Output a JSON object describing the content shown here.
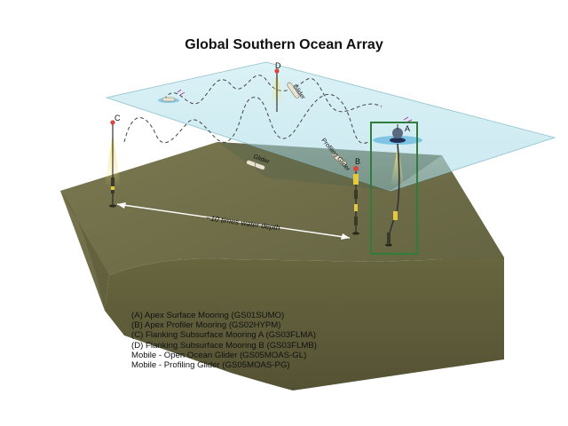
{
  "title": "Global Southern Ocean Array",
  "distance_label": "~10 times water depth",
  "mooring_letters": {
    "a": "A",
    "b": "B",
    "c": "C",
    "d": "D"
  },
  "glider_labels": {
    "glider_center": "Glider",
    "glider_top": "Glider",
    "profiling_glider": "Profiling Glider"
  },
  "legend": [
    "(A) Apex Surface Mooring (GS01SUMO)",
    "(B) Apex Profiler Mooring (GS02HYPM)",
    "(C) Flanking Subsurface Mooring A (GS03FLMA)",
    "(D) Flanking Subsurface Mooring B (GS03FLMB)",
    "Mobile - Open Ocean Glider (GS05MOAS-GL)",
    "Mobile - Profiling Glider (GS05MOAS-PG)"
  ],
  "colors": {
    "highlight_box": "#2f7d3a",
    "sea_surface": "#bfe6ef",
    "seafloor_top": "#6e6d47",
    "seafloor_side": "#5c5a3a"
  }
}
